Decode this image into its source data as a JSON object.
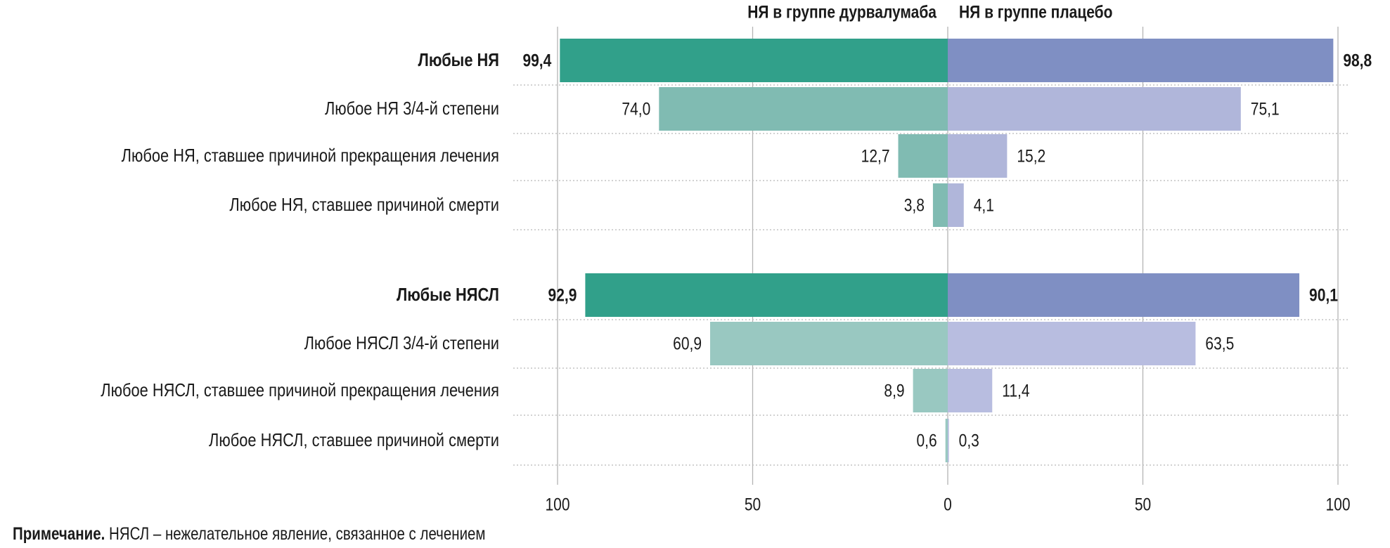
{
  "chart_data": {
    "type": "bar",
    "orientation": "horizontal-butterfly",
    "series": [
      {
        "name": "НЯ в группе дурвалумаба",
        "side": "left",
        "color_main": "#31a08a",
        "color_sub_A": "#80bbb2",
        "color_sub_B": "#99c8c1",
        "values": [
          99.4,
          74.0,
          12.7,
          3.8,
          92.9,
          60.9,
          8.9,
          0.6
        ],
        "labels": [
          "99,4",
          "74,0",
          "12,7",
          "3,8",
          "92,9",
          "60,9",
          "8,9",
          "0,6"
        ]
      },
      {
        "name": "НЯ в группе плацебо",
        "side": "right",
        "color_main": "#7f8fc3",
        "color_sub_A": "#b0b6da",
        "color_sub_B": "#b8bde0",
        "values": [
          98.8,
          75.1,
          15.2,
          4.1,
          90.1,
          63.5,
          11.4,
          0.3
        ],
        "labels": [
          "98,8",
          "75,1",
          "15,2",
          "4,1",
          "90,1",
          "63,5",
          "11,4",
          "0,3"
        ]
      }
    ],
    "categories": [
      {
        "label": "Любые НЯ",
        "bold": true,
        "group": "A"
      },
      {
        "label": "Любое НЯ 3/4-й степени",
        "bold": false,
        "group": "A"
      },
      {
        "label": "Любое НЯ, ставшее причиной прекращения лечения",
        "bold": false,
        "group": "A"
      },
      {
        "label": "Любое НЯ, ставшее причиной смерти",
        "bold": false,
        "group": "A"
      },
      {
        "label": "Любые НЯСЛ",
        "bold": true,
        "group": "B"
      },
      {
        "label": "Любое НЯСЛ 3/4-й степени",
        "bold": false,
        "group": "B"
      },
      {
        "label": "Любое НЯСЛ, ставшее причиной прекращения лечения",
        "bold": false,
        "group": "B"
      },
      {
        "label": "Любое НЯСЛ, ставшее причиной смерти",
        "bold": false,
        "group": "B"
      }
    ],
    "xlim": [
      -100,
      100
    ],
    "x_ticks": [
      -100,
      -50,
      0,
      50,
      100
    ],
    "x_tick_labels": [
      "100",
      "50",
      "0",
      "50",
      "100"
    ],
    "grid": true,
    "legend": "top"
  },
  "note": {
    "label": "Примечание.",
    "text": " НЯСЛ – нежелательное явление, связанное с лечением"
  }
}
